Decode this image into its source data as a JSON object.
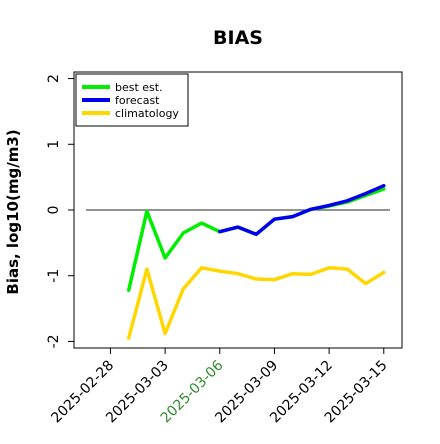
{
  "chart_data": {
    "type": "line",
    "title": "BIAS",
    "xlabel": "",
    "ylabel": "Bias, log10(mg/m3)",
    "ylim": [
      -2.1,
      2.1
    ],
    "yticks": [
      -2,
      -1,
      0,
      1,
      2
    ],
    "ytick_labels": [
      "-2",
      "-1",
      "0",
      "1",
      "2"
    ],
    "x": [
      "2025-02-27",
      "2025-02-28",
      "2025-03-01",
      "2025-03-02",
      "2025-03-03",
      "2025-03-04",
      "2025-03-05",
      "2025-03-06",
      "2025-03-07",
      "2025-03-08",
      "2025-03-09",
      "2025-03-10",
      "2025-03-11",
      "2025-03-12",
      "2025-03-13",
      "2025-03-14",
      "2025-03-15"
    ],
    "xticks": [
      {
        "date": "2025-02-28",
        "label": "2025-02-28",
        "color": "#000000"
      },
      {
        "date": "2025-03-03",
        "label": "2025-03-03",
        "color": "#000000"
      },
      {
        "date": "2025-03-06",
        "label": "2025-03-06",
        "color": "#2e8b2e"
      },
      {
        "date": "2025-03-09",
        "label": "2025-03-09",
        "color": "#000000"
      },
      {
        "date": "2025-03-12",
        "label": "2025-03-12",
        "color": "#000000"
      },
      {
        "date": "2025-03-15",
        "label": "2025-03-15",
        "color": "#000000"
      }
    ],
    "xlim": [
      "2025-02-26",
      "2025-03-16"
    ],
    "zero_line": true,
    "legend_position": "top-left",
    "series": [
      {
        "name": "climatology",
        "color": "#ffd700",
        "values": [
          null,
          null,
          -1.95,
          -0.9,
          -1.88,
          -1.2,
          -0.88,
          -0.93,
          -0.97,
          -1.05,
          -1.06,
          -0.97,
          -0.98,
          -0.88,
          -0.9,
          -1.12,
          -0.95
        ]
      },
      {
        "name": "best est.",
        "color": "#00ee00",
        "values": [
          null,
          null,
          -1.22,
          -0.02,
          -0.73,
          -0.35,
          -0.2,
          -0.33,
          -0.26,
          -0.37,
          -0.14,
          -0.1,
          0.01,
          0.06,
          0.12,
          0.22,
          0.32
        ]
      },
      {
        "name": "forecast",
        "color": "#0000ee",
        "values": [
          null,
          null,
          null,
          null,
          null,
          null,
          null,
          -0.33,
          -0.26,
          -0.37,
          -0.14,
          -0.1,
          0.01,
          0.07,
          0.14,
          0.25,
          0.37
        ]
      }
    ],
    "legend_order": [
      "best est.",
      "forecast",
      "climatology"
    ]
  }
}
